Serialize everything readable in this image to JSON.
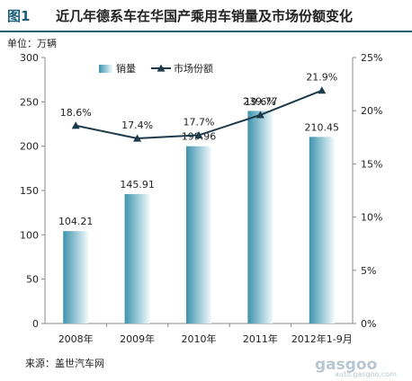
{
  "header": {
    "figure_number": "图1",
    "title": "近几年德系车在华国产乘用车销量及市场份额变化"
  },
  "unit": "单位：万辆",
  "source": "来源：盖世汽车网",
  "watermark": {
    "main": "gasgoo",
    "url": "auto.gasgoo.com"
  },
  "chart_data": {
    "type": "bar",
    "categories": [
      "2008年",
      "2009年",
      "2010年",
      "2011年",
      "2012年1-9月"
    ],
    "series": [
      {
        "name": "销量",
        "type": "bar",
        "axis": "left",
        "values": [
          104.21,
          145.91,
          199.96,
          239.77,
          210.45
        ],
        "labels": [
          "104.21",
          "145.91",
          "199.96",
          "239.77",
          "210.45"
        ]
      },
      {
        "name": "市场份额",
        "type": "line",
        "axis": "right",
        "values": [
          18.6,
          17.4,
          17.7,
          19.6,
          21.9
        ],
        "labels": [
          "18.6%",
          "17.4%",
          "17.7%",
          "19.6%",
          "21.9%"
        ]
      }
    ],
    "y_left": {
      "min": 0,
      "max": 300,
      "ticks": [
        "0",
        "50",
        "100",
        "150",
        "200",
        "250",
        "300"
      ]
    },
    "y_right": {
      "min": 0,
      "max": 25,
      "ticks": [
        "0%",
        "5%",
        "10%",
        "15%",
        "20%",
        "25%"
      ]
    },
    "grid": false,
    "legend_position": "top",
    "colors": {
      "bar_dark": "#3d93ad",
      "bar_light": "#f2fafc",
      "line": "#1c3a4a",
      "axis": "#888888"
    }
  }
}
